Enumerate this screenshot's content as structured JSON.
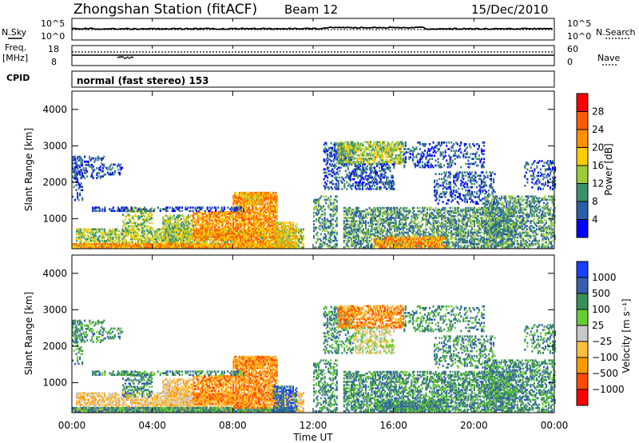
{
  "header": {
    "station": "Zhongshan Station (fitACF)",
    "beam": "Beam 12",
    "date": "15/Dec/2010"
  },
  "noise_panel": {
    "left_label": "N.Sky",
    "left_ticks": [
      "10^5",
      "10^0"
    ],
    "right_label": "N.Search",
    "right_ticks": [
      "10^5",
      "10^0"
    ]
  },
  "freq_panel": {
    "left_label_top": "Freq.",
    "left_label_bottom": "[MHz]",
    "left_ticks": [
      "18",
      "8"
    ],
    "right_label": "Nave",
    "right_ticks": [
      "60",
      "0"
    ]
  },
  "cpid_panel": {
    "label": "CPID",
    "text": "normal (fast stereo) 153"
  },
  "x_axis": {
    "ticks": [
      "00:00",
      "04:00",
      "08:00",
      "12:00",
      "16:00",
      "20:00",
      "00:00"
    ],
    "label": "Time UT"
  },
  "colors": {
    "power": [
      "#0000ff",
      "#2c5ea8",
      "#3d8f6a",
      "#9ccc3a",
      "#ffcc00",
      "#ff9000",
      "#ff5a00",
      "#ff0000"
    ],
    "velocity": [
      "#ff0000",
      "#ff4a00",
      "#ff9a00",
      "#ffc040",
      "#c8c8c8",
      "#66cc33",
      "#3a8f5a",
      "#3560b0",
      "#1840ff"
    ]
  },
  "chart_data": [
    {
      "type": "heatmap",
      "panel": "power",
      "ylabel": "Slant Range [km]",
      "ylim": [
        180,
        4500
      ],
      "yticks": [
        "1000",
        "2000",
        "3000",
        "4000"
      ],
      "xlim": [
        0,
        24
      ],
      "colorbar_label": "Power [dB]",
      "colorbar_ticks": [
        "4",
        "8",
        "12",
        "16",
        "20",
        "24",
        "28"
      ],
      "zlim": [
        0,
        32
      ]
    },
    {
      "type": "heatmap",
      "panel": "velocity",
      "ylabel": "Slant Range [km]",
      "ylim": [
        180,
        4500
      ],
      "yticks": [
        "1000",
        "2000",
        "3000",
        "4000"
      ],
      "xlim": [
        0,
        24
      ],
      "colorbar_label": "Velocity [m s⁻¹]",
      "colorbar_ticks": [
        "1000",
        "500",
        "100",
        "25",
        "−25",
        "−100",
        "−500",
        "−1000"
      ],
      "zlim": [
        -1000,
        1000
      ]
    }
  ]
}
